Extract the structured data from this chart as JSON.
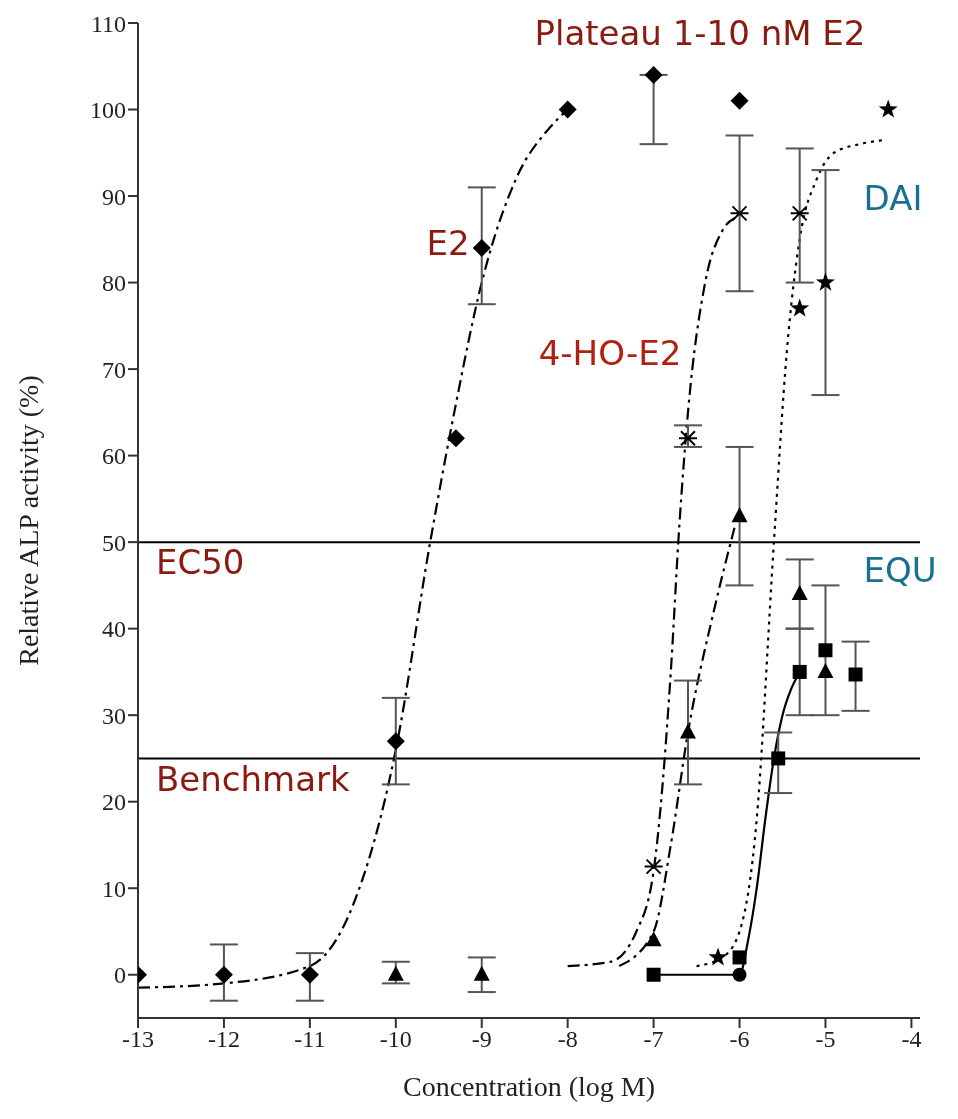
{
  "chart_data": {
    "type": "scatter",
    "xlabel": "Concentration (log M)",
    "ylabel": "Relative ALP activity (%)",
    "xlim": [
      -13,
      -3.9
    ],
    "xticks": [
      -13,
      -12,
      -11,
      -10,
      -9,
      -8,
      -7,
      -6,
      -5,
      -4
    ],
    "ylim": [
      -5,
      110
    ],
    "yticks": [
      0,
      10,
      20,
      30,
      40,
      50,
      60,
      70,
      80,
      90,
      100,
      110
    ],
    "grid": false,
    "legend": false,
    "ref_lines": [
      {
        "axis": "y",
        "value": 50,
        "label": "EC50",
        "color": "#000000"
      },
      {
        "axis": "y",
        "value": 25,
        "label": "Benchmark",
        "color": "#000000"
      }
    ],
    "annotations": [
      "Plateau 1-10 nM E2",
      "E2",
      "4-HO-E2",
      "DAI",
      "EQU"
    ],
    "series": [
      {
        "type": "line",
        "line_style": "dashed",
        "color": "#000000",
        "x": [
          -13,
          -12,
          -11,
          -10.5,
          -10,
          -9.6,
          -9.3,
          -9,
          -8.6,
          -8.2,
          -8
        ],
        "values": [
          -1.5,
          -1,
          1,
          8,
          26,
          50,
          66,
          80,
          92,
          98,
          100
        ]
      },
      {
        "type": "line",
        "line_style": "dashed",
        "color": "#000000",
        "x": [
          -8,
          -7.5,
          -7.2,
          -7,
          -6.8,
          -6.7,
          -6.6,
          -6.4,
          -6.2,
          -6.05
        ],
        "values": [
          1,
          1.5,
          5,
          12,
          35,
          52,
          65,
          80,
          86,
          87.5
        ]
      },
      {
        "type": "line",
        "line_style": "dashed",
        "color": "#000000",
        "x": [
          -7.4,
          -7,
          -6.8,
          -6.6,
          -6.3,
          -6.05
        ],
        "values": [
          1,
          5,
          15,
          28,
          42,
          52
        ]
      },
      {
        "type": "line",
        "line_style": "dotted",
        "color": "#000000",
        "x": [
          -6.5,
          -6.2,
          -6,
          -5.8,
          -5.6,
          -5.45,
          -5.3,
          -5.1,
          -4.9,
          -4.6,
          -4.3
        ],
        "values": [
          1,
          2,
          5,
          18,
          50,
          72,
          85,
          92,
          95,
          96,
          96.5
        ]
      },
      {
        "type": "line",
        "line_style": "solid",
        "color": "#000000",
        "x": [
          -7,
          -6,
          -5.9,
          -5.8,
          -5.7,
          -5.6,
          -5.5,
          -5.4,
          -5.3
        ],
        "values": [
          0,
          0,
          4,
          10,
          18,
          25,
          30,
          33,
          35
        ]
      },
      {
        "marker": "diamond",
        "color": "#000000",
        "x": [
          -13,
          -12,
          -11,
          -10,
          -9.3,
          -9,
          -8,
          -7,
          -6
        ],
        "values": [
          0,
          0,
          0,
          27,
          62,
          84,
          100,
          104,
          101
        ],
        "errors": [
          null,
          [
            -3,
            3.5
          ],
          [
            -3,
            2.5
          ],
          [
            22,
            32
          ],
          null,
          [
            77.5,
            91
          ],
          null,
          [
            96,
            104
          ],
          null
        ]
      },
      {
        "marker": "cross",
        "color": "#000000",
        "x": [
          -7,
          -6.6,
          -6,
          -5.3
        ],
        "values": [
          12.5,
          62,
          88,
          88
        ],
        "errors": [
          null,
          [
            61,
            63.5
          ],
          [
            79,
            97
          ],
          [
            80,
            95.5
          ]
        ]
      },
      {
        "marker": "triangle",
        "color": "#000000",
        "x": [
          -10,
          -9,
          -7,
          -6.6,
          -6,
          -5.3,
          -5
        ],
        "values": [
          0,
          0,
          4,
          28,
          53,
          44,
          35
        ],
        "errors": [
          [
            -1,
            1.5
          ],
          [
            -2,
            2
          ],
          null,
          [
            22,
            34
          ],
          [
            45,
            61
          ],
          [
            40,
            48
          ],
          [
            30,
            45
          ]
        ]
      },
      {
        "marker": "square",
        "color": "#000000",
        "x": [
          -7,
          -6,
          -5.55,
          -5.3,
          -5,
          -4.65
        ],
        "values": [
          0,
          2,
          25,
          35,
          37.5,
          34.7
        ],
        "errors": [
          null,
          null,
          [
            21,
            28
          ],
          [
            30,
            40
          ],
          null,
          [
            30.5,
            38.5
          ]
        ]
      },
      {
        "marker": "star",
        "color": "#000000",
        "x": [
          -6.25,
          -5.3,
          -5,
          -4.27
        ],
        "values": [
          2,
          77,
          80,
          100
        ],
        "errors": [
          null,
          null,
          [
            67,
            93
          ],
          null
        ]
      },
      {
        "marker": "circle",
        "color": "#000000",
        "x": [
          -6
        ],
        "values": [
          0
        ]
      }
    ]
  }
}
